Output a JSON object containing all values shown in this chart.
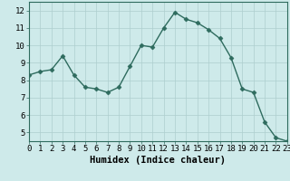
{
  "x": [
    0,
    1,
    2,
    3,
    4,
    5,
    6,
    7,
    8,
    9,
    10,
    11,
    12,
    13,
    14,
    15,
    16,
    17,
    18,
    19,
    20,
    21,
    22,
    23
  ],
  "y": [
    8.3,
    8.5,
    8.6,
    9.4,
    8.3,
    7.6,
    7.5,
    7.3,
    7.6,
    8.8,
    10.0,
    9.9,
    11.0,
    11.9,
    11.5,
    11.3,
    10.9,
    10.4,
    9.3,
    7.5,
    7.3,
    5.6,
    4.7,
    4.5
  ],
  "line_color": "#2e6b5e",
  "marker": "D",
  "marker_size": 2.5,
  "bg_color": "#ceeaea",
  "grid_color": "#aecece",
  "xlabel": "Humidex (Indice chaleur)",
  "xlim": [
    0,
    23
  ],
  "ylim": [
    4.5,
    12.5
  ],
  "yticks": [
    5,
    6,
    7,
    8,
    9,
    10,
    11,
    12
  ],
  "xticks": [
    0,
    1,
    2,
    3,
    4,
    5,
    6,
    7,
    8,
    9,
    10,
    11,
    12,
    13,
    14,
    15,
    16,
    17,
    18,
    19,
    20,
    21,
    22,
    23
  ],
  "tick_label_fontsize": 6.5,
  "xlabel_fontsize": 7.5,
  "line_width": 1.0
}
